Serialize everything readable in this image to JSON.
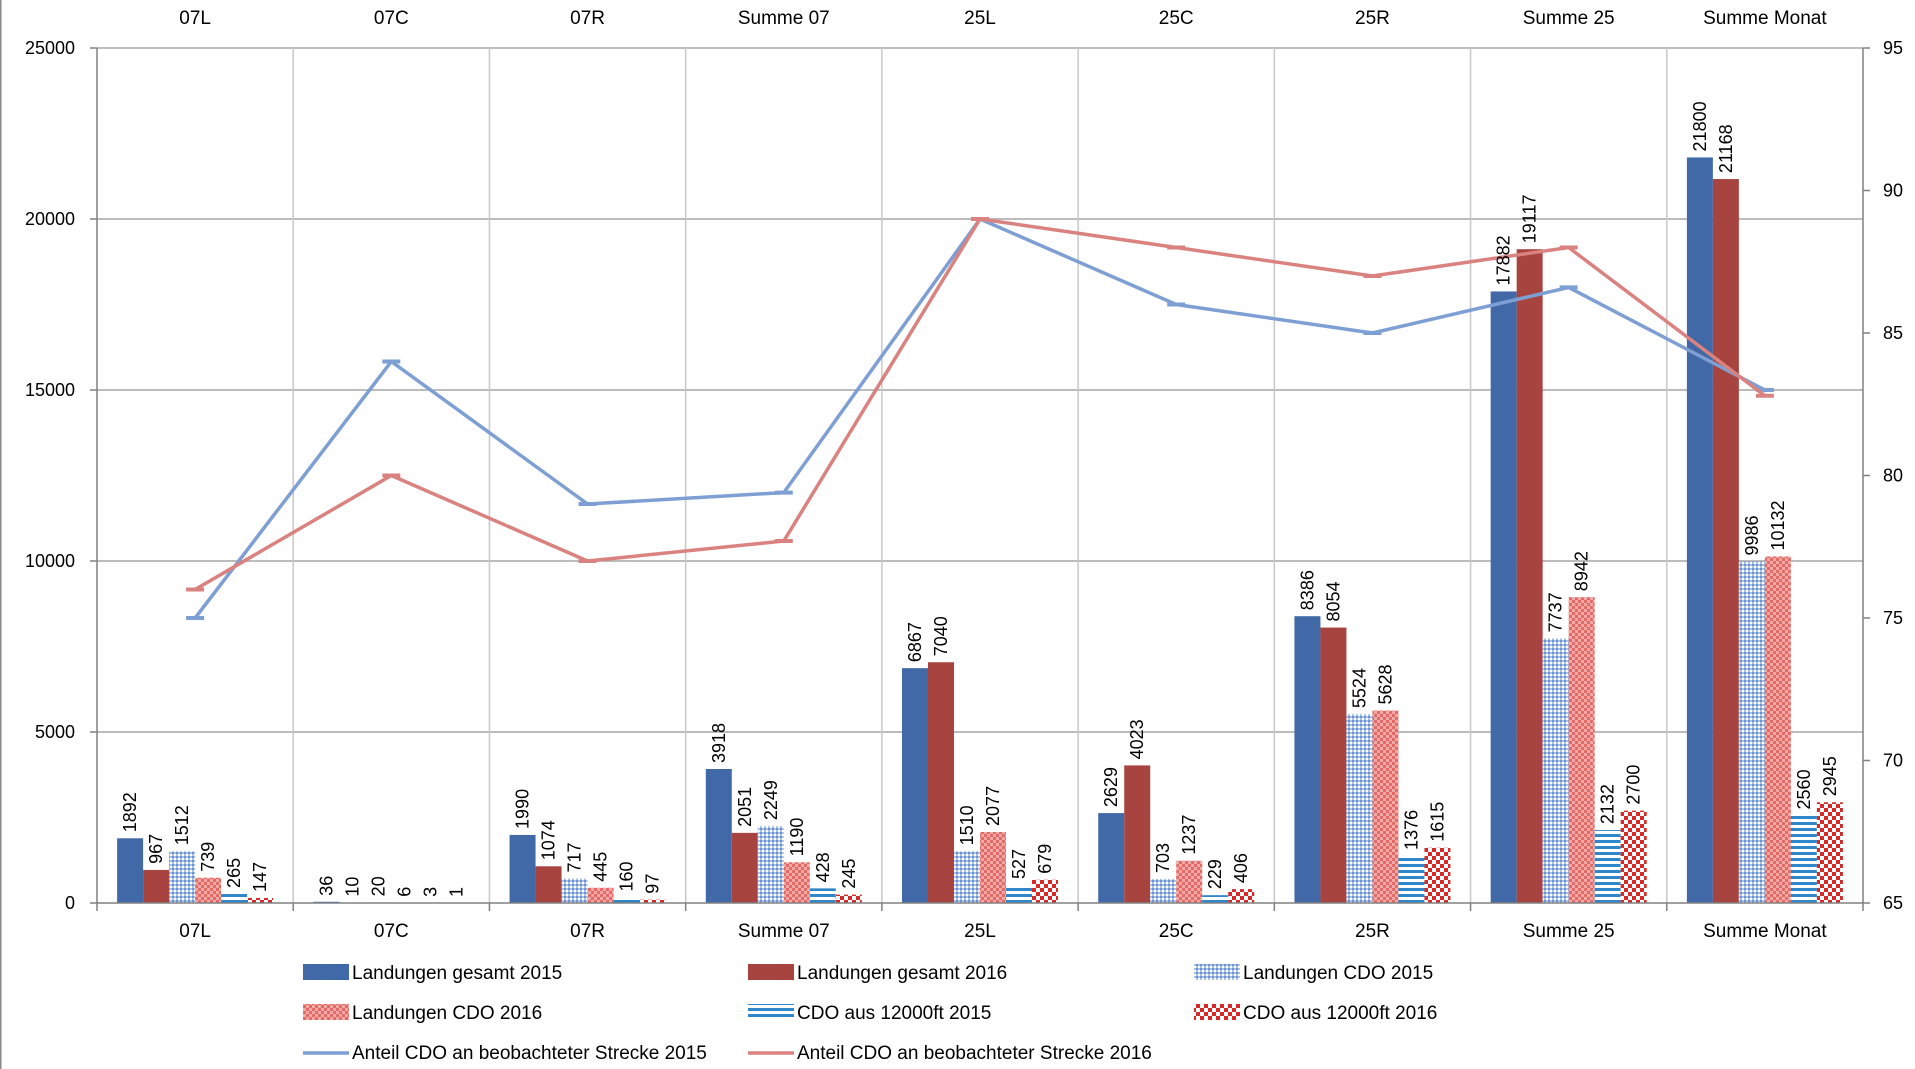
{
  "chart_data": {
    "type": "bar",
    "categories": [
      "07L",
      "07C",
      "07R",
      "Summe 07",
      "25L",
      "25C",
      "25R",
      "Summe 25",
      "Summe Monat"
    ],
    "y_left": {
      "min": 0,
      "max": 25000,
      "ticks": [
        0,
        5000,
        10000,
        15000,
        20000,
        25000
      ]
    },
    "y_right": {
      "min": 65,
      "max": 95,
      "ticks": [
        65,
        70,
        75,
        80,
        85,
        90,
        95
      ]
    },
    "grid": true,
    "bar_series": [
      {
        "name": "Landungen gesamt 2015",
        "color": "#4169A8",
        "pattern": "solid",
        "values": [
          1892,
          36,
          1990,
          3918,
          6867,
          2629,
          8386,
          17882,
          21800
        ]
      },
      {
        "name": "Landungen gesamt 2016",
        "color": "#A84440",
        "pattern": "solid",
        "values": [
          967,
          10,
          1074,
          2051,
          7040,
          4023,
          8054,
          19117,
          21168
        ]
      },
      {
        "name": "Landungen CDO 2015",
        "color": "#6C93D0",
        "pattern": "dots-light",
        "values": [
          1512,
          20,
          717,
          2249,
          1510,
          703,
          5524,
          7737,
          9986
        ]
      },
      {
        "name": "Landungen CDO 2016",
        "color": "#E26B67",
        "pattern": "checker-light",
        "values": [
          739,
          6,
          445,
          1190,
          2077,
          1237,
          5628,
          8942,
          10132
        ]
      },
      {
        "name": "CDO aus 12000ft 2015",
        "color": "#2F86C8",
        "pattern": "hstripes",
        "values": [
          265,
          3,
          160,
          428,
          527,
          229,
          1376,
          2132,
          2560
        ]
      },
      {
        "name": "CDO aus 12000ft 2016",
        "color": "#D42A2A",
        "pattern": "checker",
        "values": [
          147,
          1,
          97,
          245,
          679,
          406,
          1615,
          2700,
          2945
        ]
      }
    ],
    "line_series": [
      {
        "name": "Anteil CDO an beobachteter Strecke 2015",
        "color": "#7E9FD4",
        "axis": "right",
        "values": [
          75,
          84,
          79,
          79.4,
          89,
          86,
          85,
          86.6,
          83
        ]
      },
      {
        "name": "Anteil CDO an beobachteter Strecke 2016",
        "color": "#D9827F",
        "axis": "right",
        "values": [
          76,
          80,
          77,
          77.7,
          89,
          88,
          87,
          88,
          82.8
        ]
      }
    ],
    "legend_position": "bottom"
  }
}
